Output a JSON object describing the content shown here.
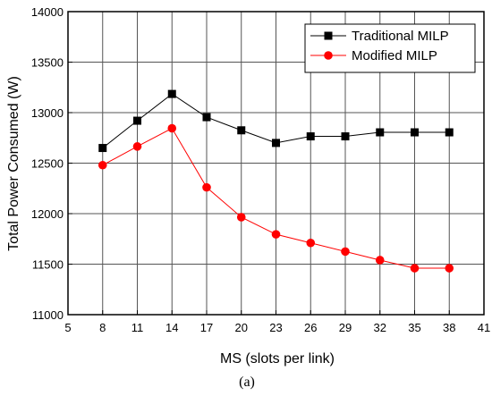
{
  "chart_data": {
    "type": "line",
    "xlabel": "MS (slots per link)",
    "ylabel": "Total Power Consumed (W)",
    "xlim": [
      5,
      41
    ],
    "ylim": [
      11000,
      14000
    ],
    "xticks": [
      5,
      8,
      11,
      14,
      17,
      20,
      23,
      26,
      29,
      32,
      35,
      38,
      41
    ],
    "yticks": [
      11000,
      11500,
      12000,
      12500,
      13000,
      13500,
      14000
    ],
    "grid": true,
    "legend_position": "top-right",
    "x": [
      8,
      11,
      14,
      17,
      20,
      23,
      26,
      29,
      32,
      35,
      38
    ],
    "series": [
      {
        "name": "Traditional MILP",
        "color": "#000000",
        "marker": "square",
        "values": [
          12650,
          12920,
          13185,
          12955,
          12825,
          12700,
          12765,
          12765,
          12805,
          12805,
          12805
        ]
      },
      {
        "name": "Modified MILP",
        "color": "#ff0000",
        "marker": "circle",
        "values": [
          12480,
          12665,
          12845,
          12260,
          11965,
          11795,
          11710,
          11625,
          11540,
          11460,
          11460
        ]
      }
    ],
    "caption": "(a)"
  }
}
